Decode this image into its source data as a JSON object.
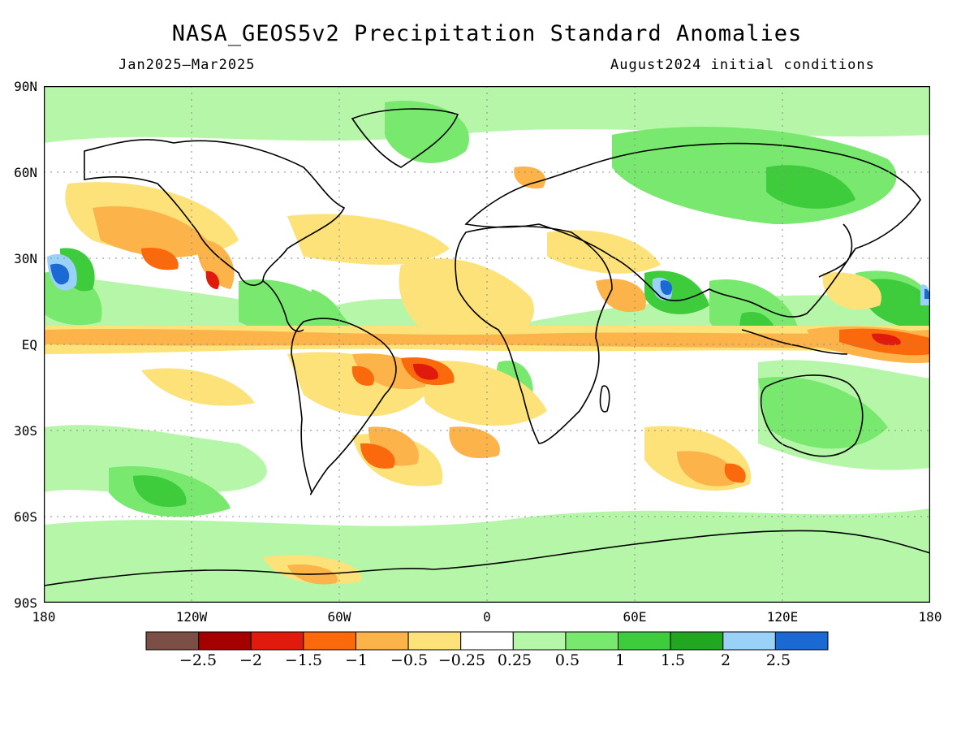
{
  "title": "NASA_GEOS5v2 Precipitation Standard Anomalies",
  "subtitle_left": "Jan2025–Mar2025",
  "subtitle_right": "August2024 initial conditions",
  "lat_labels": [
    "90N",
    "60N",
    "30N",
    "EQ",
    "30S",
    "60S",
    "90S"
  ],
  "lon_labels": [
    "180",
    "120W",
    "60W",
    "0",
    "60E",
    "120E",
    "180"
  ],
  "colorbar": {
    "colors": [
      "#7b4f45",
      "#a50000",
      "#e01b0e",
      "#fa6a0c",
      "#fbb34a",
      "#fde27a",
      "#ffffff",
      "#b6f6a8",
      "#78e86e",
      "#3ecc3c",
      "#22a723",
      "#9ad1f7",
      "#1b69d2"
    ],
    "labels": [
      "−2.5",
      "−2",
      "−1.5",
      "−1",
      "−0.5",
      "−0.25",
      "0.25",
      "0.5",
      "1",
      "1.5",
      "2",
      "2.5"
    ]
  }
}
